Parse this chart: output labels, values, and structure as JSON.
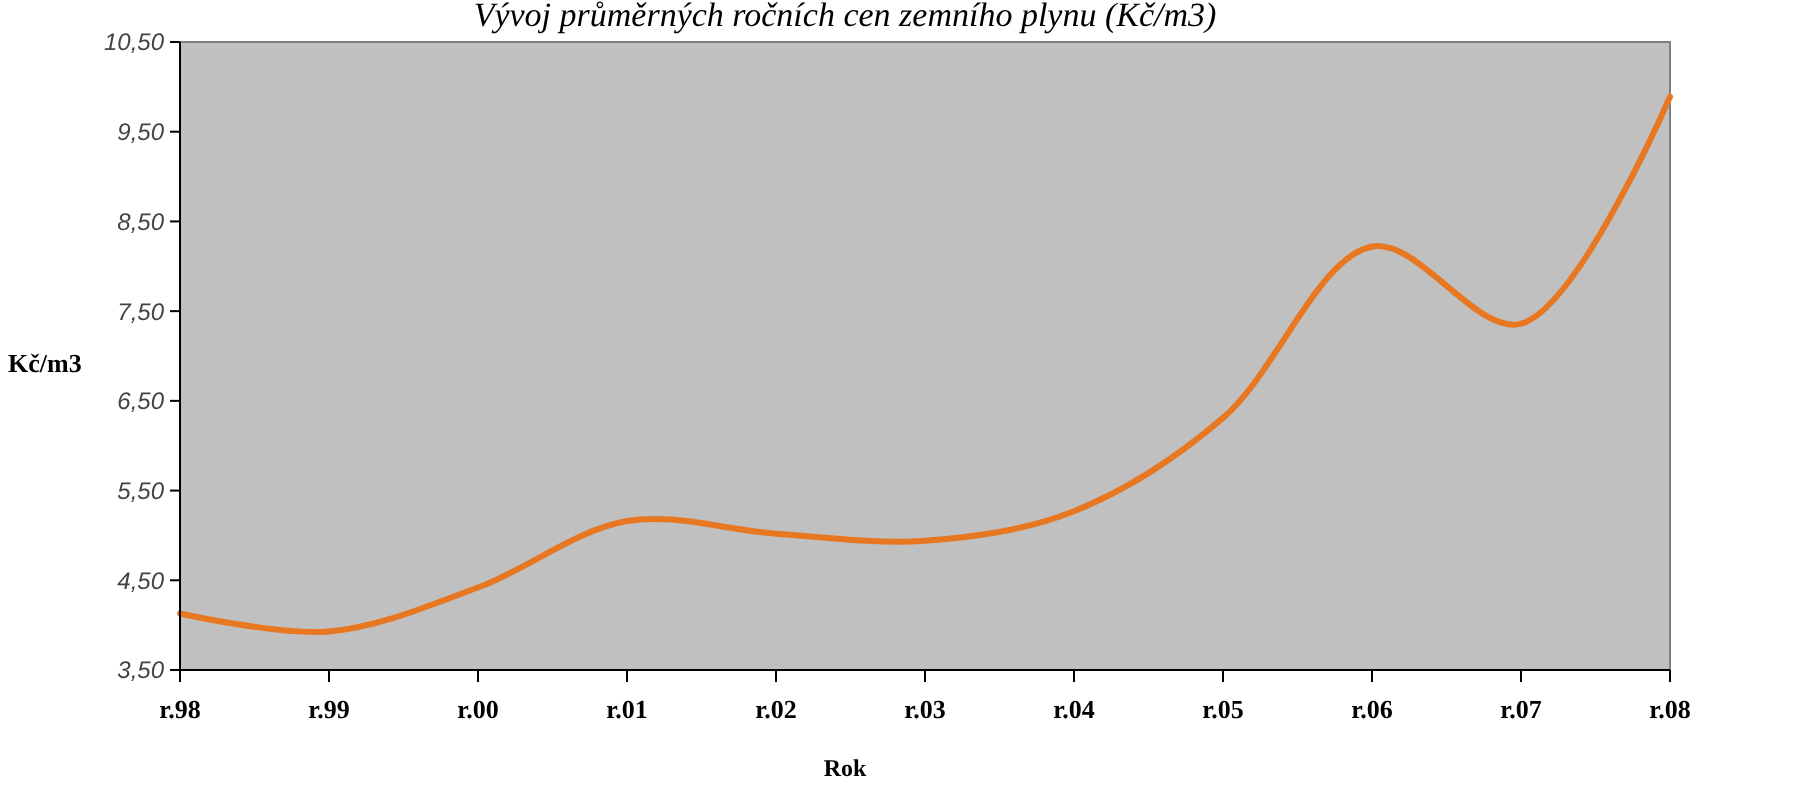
{
  "chart_data": {
    "type": "line",
    "title": "Vývoj průměrných ročních cen zemního plynu (Kč/m3)",
    "xlabel": "Rok",
    "ylabel": "Kč/m3",
    "categories": [
      "r.98",
      "r.99",
      "r.00",
      "r.01",
      "r.02",
      "r.03",
      "r.04",
      "r.05",
      "r.06",
      "r.07",
      "r.08"
    ],
    "series": [
      {
        "color": "#e87722",
        "values": [
          4.13,
          3.93,
          4.42,
          5.16,
          5.02,
          4.94,
          5.27,
          6.31,
          8.22,
          7.36,
          9.89
        ]
      }
    ],
    "ylim": [
      3.5,
      10.5
    ],
    "yticks": [
      {
        "value": 3.5,
        "label": "3,50"
      },
      {
        "value": 4.5,
        "label": "4,50"
      },
      {
        "value": 5.5,
        "label": "5,50"
      },
      {
        "value": 6.5,
        "label": "6,50"
      },
      {
        "value": 7.5,
        "label": "7,50"
      },
      {
        "value": 8.5,
        "label": "8,50"
      },
      {
        "value": 9.5,
        "label": "9,50"
      },
      {
        "value": 10.5,
        "label": "10,50"
      }
    ],
    "grid": false,
    "marker": "none",
    "line_style": "solid"
  }
}
